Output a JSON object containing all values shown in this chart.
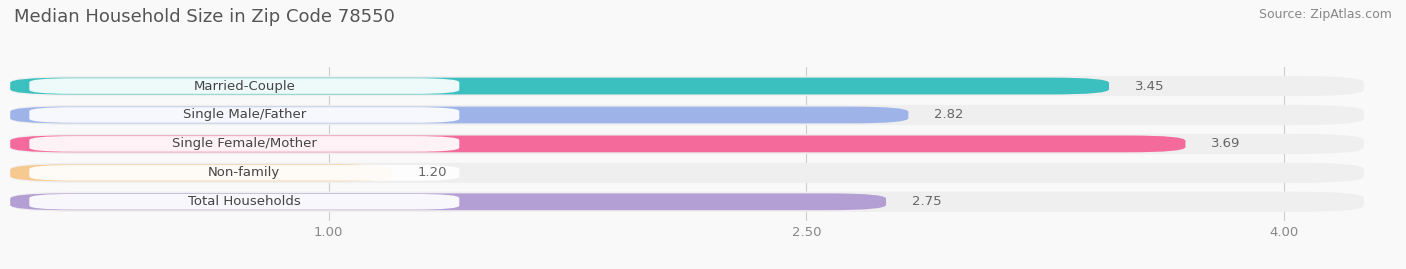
{
  "title": "Median Household Size in Zip Code 78550",
  "source": "Source: ZipAtlas.com",
  "categories": [
    "Married-Couple",
    "Single Male/Father",
    "Single Female/Mother",
    "Non-family",
    "Total Households"
  ],
  "values": [
    3.45,
    2.82,
    3.69,
    1.2,
    2.75
  ],
  "bar_colors": [
    "#3bbfbf",
    "#9eb4e8",
    "#f46b9b",
    "#f5c990",
    "#b49fd4"
  ],
  "bar_bg_color": "#efefef",
  "xmin": 0.0,
  "xmax": 4.25,
  "xticks": [
    1.0,
    2.5,
    4.0
  ],
  "xticklabels": [
    "1.00",
    "2.50",
    "4.00"
  ],
  "label_fontsize": 9.5,
  "value_fontsize": 9.5,
  "title_fontsize": 13,
  "source_fontsize": 9,
  "background_color": "#f9f9f9",
  "bar_height": 0.58,
  "label_box_color": "#ffffff",
  "label_text_color": "#444444",
  "value_text_color": "#666666"
}
